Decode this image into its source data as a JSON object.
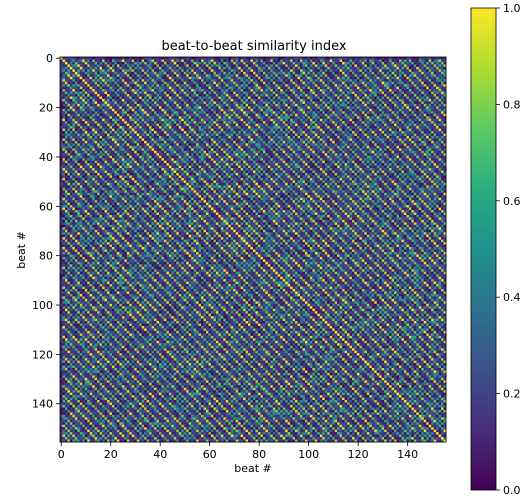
{
  "chart_data": {
    "type": "heatmap",
    "title": "beat-to-beat similarity index",
    "xlabel": "beat #",
    "ylabel": "beat #",
    "n_beats": 156,
    "xlim": [
      0,
      155
    ],
    "ylim": [
      0,
      155
    ],
    "y_axis_inverted": true,
    "x_ticks": [
      0,
      20,
      40,
      60,
      80,
      100,
      120,
      140
    ],
    "y_ticks": [
      0,
      20,
      40,
      60,
      80,
      100,
      120,
      140
    ],
    "colormap": "viridis",
    "value_range": [
      0.0,
      1.0
    ],
    "colorbar_ticks": [
      "0.0",
      "0.2",
      "0.4",
      "0.6",
      "0.8",
      "1.0"
    ],
    "diagonal_value": 1.0,
    "dominant_period_beats": 4,
    "description_of_values": "symmetric similarity matrix; unit diagonal; periodic off-diagonal stripes every 4 beats with values 0.6-1.0; other cells mostly 0.0-0.3"
  }
}
